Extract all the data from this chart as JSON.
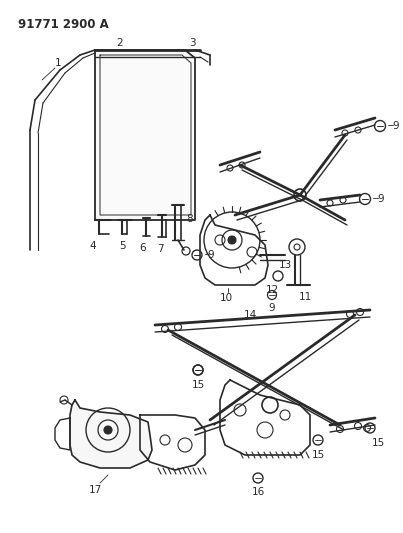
{
  "title": "91771 2900 A",
  "bg_color": "#ffffff",
  "line_color": "#2a2a2a",
  "title_fontsize": 8.5,
  "label_fontsize": 7.5,
  "fig_w": 4.03,
  "fig_h": 5.33,
  "dpi": 100
}
